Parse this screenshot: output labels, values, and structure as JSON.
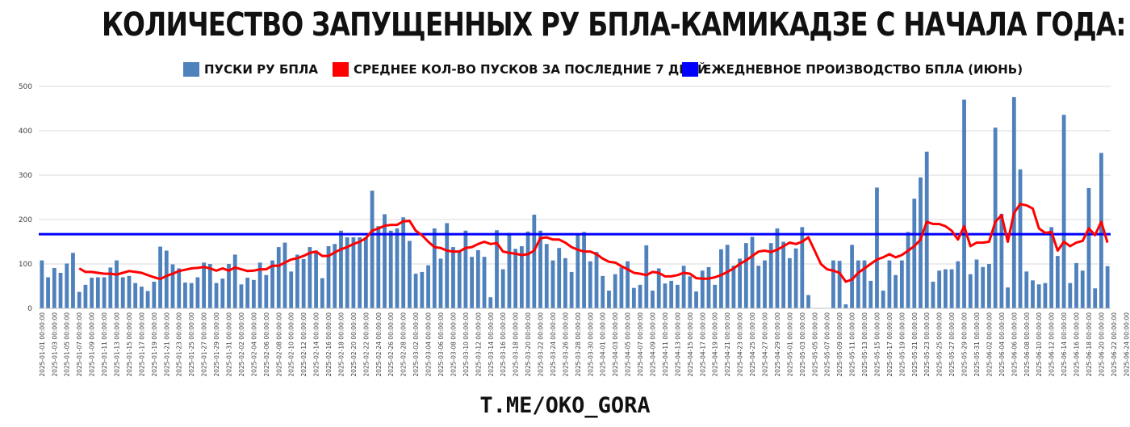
{
  "title": "КОЛИЧЕСТВО ЗАПУЩЕННЫХ РУ БПЛА-КАМИКАДЗЕ С НАЧАЛА ГОДА:",
  "footer": "T.ME/OKO_GORA",
  "legend": [
    {
      "label": "ПУСКИ РУ БПЛА",
      "color": "#4f81bd"
    },
    {
      "label": "СРЕДНЕЕ КОЛ-ВО ПУСКОВ ЗА ПОСЛЕДНИЕ 7 ДНЕЙ",
      "color": "#ff0000"
    },
    {
      "label": "ЕЖЕДНЕВНОЕ ПРОИЗВОДСТВО БПЛА (ИЮНЬ)",
      "color": "#0000ff"
    }
  ],
  "chart_data": {
    "type": "bar",
    "ylim": [
      0,
      500
    ],
    "yticks": [
      0,
      100,
      200,
      300,
      400,
      500
    ],
    "grid": true,
    "legend_position": "top",
    "x_start": "2025-01-01",
    "x_end": "2025-06-24",
    "x_tick_labels": [
      "2025-01-01 00:00:00",
      "2025-01-03 00:00:00",
      "2025-01-05 00:00:00",
      "2025-01-07 00:00:00",
      "2025-01-09 00:00:00",
      "2025-01-11 00:00:00",
      "2025-01-13 00:00:00",
      "2025-01-15 00:00:00",
      "2025-01-17 00:00:00",
      "2025-01-19 00:00:00",
      "2025-01-21 00:00:00",
      "2025-01-23 00:00:00",
      "2025-01-25 00:00:00",
      "2025-01-27 00:00:00",
      "2025-01-29 00:00:00",
      "2025-01-31 00:00:00",
      "2025-02-02 00:00:00",
      "2025-02-04 00:00:00",
      "2025-02-06 00:00:00",
      "2025-02-08 00:00:00",
      "2025-02-10 00:00:00",
      "2025-02-12 00:00:00",
      "2025-02-14 00:00:00",
      "2025-02-16 00:00:00",
      "2025-02-18 00:00:00",
      "2025-02-20 00:00:00",
      "2025-02-22 00:00:00",
      "2025-02-24 00:00:00",
      "2025-02-26 00:00:00",
      "2025-02-28 00:00:00",
      "2025-03-02 00:00:00",
      "2025-03-04 00:00:00",
      "2025-03-06 00:00:00",
      "2025-03-08 00:00:00",
      "2025-03-10 00:00:00",
      "2025-03-12 00:00:00",
      "2025-03-14 00:00:00",
      "2025-03-16 00:00:00",
      "2025-03-18 00:00:00",
      "2025-03-20 00:00:00",
      "2025-03-22 00:00:00",
      "2025-03-24 00:00:00",
      "2025-03-26 00:00:00",
      "2025-03-28 00:00:00",
      "2025-03-30 00:00:00",
      "2025-04-01 00:00:00",
      "2025-04-03 00:00:00",
      "2025-04-05 00:00:00",
      "2025-04-07 00:00:00",
      "2025-04-09 00:00:00",
      "2025-04-11 00:00:00",
      "2025-04-13 00:00:00",
      "2025-04-15 00:00:00",
      "2025-04-17 00:00:00",
      "2025-04-19 00:00:00",
      "2025-04-21 00:00:00",
      "2025-04-23 00:00:00",
      "2025-04-25 00:00:00",
      "2025-04-27 00:00:00",
      "2025-04-29 00:00:00",
      "2025-05-01 00:00:00",
      "2025-05-03 00:00:00",
      "2025-05-05 00:00:00",
      "2025-05-07 00:00:00",
      "2025-05-09 00:00:00",
      "2025-05-11 00:00:00",
      "2025-05-13 00:00:00",
      "2025-05-15 00:00:00",
      "2025-05-17 00:00:00",
      "2025-05-19 00:00:00",
      "2025-05-21 00:00:00",
      "2025-05-23 00:00:00",
      "2025-05-25 00:00:00",
      "2025-05-27 00:00:00",
      "2025-05-29 00:00:00",
      "2025-05-31 00:00:00",
      "2025-06-02 00:00:00",
      "2025-06-04 00:00:00",
      "2025-06-06 00:00:00",
      "2025-06-08 00:00:00",
      "2025-06-10 00:00:00",
      "2025-06-12 00:00:00",
      "2025-06-14 00:00:00",
      "2025-06-16 00:00:00",
      "2025-06-18 00:00:00",
      "2025-06-20 00:00:00",
      "2025-06-22 00:00:00",
      "2025-06-24 00:00:00"
    ],
    "series": [
      {
        "name": "ПУСКИ РУ БПЛА",
        "type": "bar",
        "color": "#4f81bd",
        "values": [
          108,
          70,
          91,
          80,
          101,
          125,
          37,
          53,
          69,
          70,
          70,
          92,
          108,
          70,
          73,
          57,
          49,
          39,
          60,
          139,
          130,
          99,
          90,
          58,
          57,
          70,
          103,
          100,
          57,
          67,
          100,
          121,
          54,
          69,
          64,
          103,
          75,
          108,
          138,
          148,
          83,
          121,
          111,
          138,
          130,
          68,
          140,
          145,
          175,
          160,
          160,
          160,
          160,
          265,
          185,
          212,
          175,
          180,
          205,
          152,
          78,
          82,
          97,
          180,
          112,
          192,
          138,
          130,
          175,
          116,
          131,
          116,
          25,
          176,
          88,
          170,
          134,
          140,
          173,
          211,
          175,
          145,
          108,
          136,
          113,
          82,
          167,
          172,
          106,
          127,
          73,
          40,
          77,
          92,
          106,
          46,
          53,
          142,
          40,
          90,
          56,
          62,
          53,
          96,
          72,
          38,
          85,
          93,
          53,
          133,
          143,
          96,
          112,
          147,
          161,
          96,
          108,
          147,
          180,
          150,
          113,
          135,
          183,
          30,
          0,
          0,
          0,
          108,
          107,
          9,
          143,
          108,
          108,
          62,
          272,
          40,
          108,
          75,
          108,
          172,
          247,
          295,
          353,
          60,
          85,
          88,
          88,
          106,
          470,
          77,
          110,
          93,
          100,
          407,
          213,
          47,
          476,
          313,
          83,
          63,
          54,
          57,
          183,
          118,
          436,
          57,
          102,
          85,
          271,
          45,
          350,
          95
        ]
      },
      {
        "name": "СРЕДНЕЕ КОЛ-ВО ПУСКОВ ЗА ПОСЛЕДНИЕ 7 ДНЕЙ",
        "type": "line",
        "color": "#ff0000",
        "values": [
          null,
          null,
          null,
          null,
          null,
          null,
          90,
          82,
          82,
          80,
          78,
          78,
          76,
          80,
          84,
          82,
          80,
          75,
          70,
          66,
          73,
          78,
          84,
          87,
          90,
          91,
          93,
          90,
          85,
          90,
          85,
          92,
          88,
          84,
          85,
          88,
          88,
          96,
          96,
          103,
          110,
          113,
          118,
          125,
          128,
          118,
          118,
          126,
          133,
          138,
          145,
          150,
          158,
          175,
          180,
          186,
          188,
          188,
          196,
          197,
          175,
          165,
          150,
          138,
          136,
          130,
          128,
          128,
          136,
          138,
          145,
          150,
          145,
          147,
          128,
          125,
          123,
          120,
          122,
          130,
          158,
          160,
          155,
          155,
          148,
          138,
          132,
          128,
          128,
          122,
          112,
          105,
          103,
          95,
          88,
          80,
          78,
          75,
          82,
          80,
          72,
          72,
          75,
          80,
          78,
          68,
          67,
          67,
          70,
          75,
          82,
          90,
          100,
          108,
          118,
          128,
          130,
          127,
          132,
          140,
          148,
          145,
          150,
          160,
          130,
          100,
          88,
          85,
          80,
          60,
          65,
          80,
          90,
          100,
          110,
          115,
          122,
          115,
          120,
          130,
          140,
          155,
          195,
          190,
          190,
          185,
          175,
          155,
          185,
          140,
          148,
          148,
          150,
          195,
          210,
          150,
          215,
          235,
          232,
          225,
          180,
          170,
          172,
          130,
          150,
          140,
          148,
          152,
          180,
          165,
          195,
          148
        ]
      },
      {
        "name": "ЕЖЕДНЕВНОЕ ПРОИЗВОДСТВО БПЛА (ИЮНЬ)",
        "type": "hline",
        "color": "#0000ff",
        "value": 167
      }
    ]
  }
}
